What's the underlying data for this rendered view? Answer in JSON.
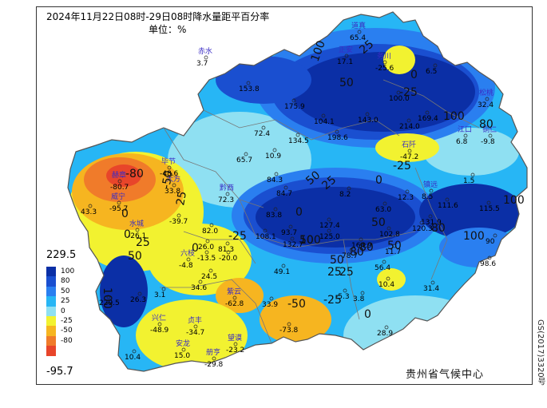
{
  "map": {
    "title": "2024年11月22日08时-29日08时降水量距平百分率",
    "unit": "单位：%",
    "agency": "贵州省气候中心",
    "approval_no": "GS(2017)3320号"
  },
  "legend": {
    "max_label": "229.5",
    "min_label": "-95.7",
    "entries": [
      {
        "label": "100",
        "color": "#0b2fa6"
      },
      {
        "label": "80",
        "color": "#1a4fd0"
      },
      {
        "label": "50",
        "color": "#2a7ff0"
      },
      {
        "label": "25",
        "color": "#27b6f5"
      },
      {
        "label": "0",
        "color": "#8fe0f2"
      },
      {
        "label": "-25",
        "color": "#f2f230"
      },
      {
        "label": "-50",
        "color": "#f6b520"
      },
      {
        "label": "-80",
        "color": "#f07b2a"
      },
      {
        "label": "",
        "color": "#e8452a"
      }
    ]
  },
  "stations": [
    {
      "name": "赤水",
      "value": "3.7"
    },
    {
      "name": "道真",
      "value": "65.4"
    },
    {
      "name": "务川",
      "value": "-25.6"
    },
    {
      "name": "正安",
      "value": "17.1"
    },
    {
      "name": "",
      "value": "6.5"
    },
    {
      "name": "",
      "value": "153.8"
    },
    {
      "name": "",
      "value": "175.9"
    },
    {
      "name": "",
      "value": "100.0"
    },
    {
      "name": "松桃",
      "value": "32.4"
    },
    {
      "name": "",
      "value": "104.1"
    },
    {
      "name": "",
      "value": "143.0"
    },
    {
      "name": "",
      "value": "214.0"
    },
    {
      "name": "",
      "value": "169.4"
    },
    {
      "name": "",
      "value": "72.4"
    },
    {
      "name": "",
      "value": "134.5"
    },
    {
      "name": "",
      "value": "198.6"
    },
    {
      "name": "江口",
      "value": "6.8"
    },
    {
      "name": "铜仁",
      "value": "-9.8"
    },
    {
      "name": "",
      "value": "65.7"
    },
    {
      "name": "",
      "value": "10.9"
    },
    {
      "name": "石阡",
      "value": "-47.2"
    },
    {
      "name": "毕节",
      "value": "-48.6"
    },
    {
      "name": "赫章",
      "value": "-80.7"
    },
    {
      "name": "大方",
      "value": "33.8"
    },
    {
      "name": "黔西",
      "value": "72.3"
    },
    {
      "name": "",
      "value": "84.7"
    },
    {
      "name": "",
      "value": "84.3"
    },
    {
      "name": "",
      "value": "8.2"
    },
    {
      "name": "",
      "value": "12.3"
    },
    {
      "name": "镇远",
      "value": "8.5"
    },
    {
      "name": "",
      "value": "1.5"
    },
    {
      "name": "威宁",
      "value": "-95.7"
    },
    {
      "name": "",
      "value": "43.3"
    },
    {
      "name": "",
      "value": "-39.7"
    },
    {
      "name": "",
      "value": "63.0"
    },
    {
      "name": "",
      "value": "111.6"
    },
    {
      "name": "",
      "value": "115.5"
    },
    {
      "name": "",
      "value": "83.8"
    },
    {
      "name": "",
      "value": "131.9"
    },
    {
      "name": "水城",
      "value": "-26.1"
    },
    {
      "name": "",
      "value": "82.0"
    },
    {
      "name": "",
      "value": "108.1"
    },
    {
      "name": "",
      "value": "127.4"
    },
    {
      "name": "",
      "value": "102.8"
    },
    {
      "name": "",
      "value": "120.3"
    },
    {
      "name": "",
      "value": "93.7"
    },
    {
      "name": "",
      "value": "125.0"
    },
    {
      "name": "",
      "value": "164.9"
    },
    {
      "name": "",
      "value": "90"
    },
    {
      "name": "",
      "value": "26.0"
    },
    {
      "name": "",
      "value": "81.3"
    },
    {
      "name": "",
      "value": "132.7"
    },
    {
      "name": "",
      "value": "11.7"
    },
    {
      "name": "六枝",
      "value": "-4.8"
    },
    {
      "name": "",
      "value": "-13.5"
    },
    {
      "name": "",
      "value": "-20.0"
    },
    {
      "name": "",
      "value": "78.7"
    },
    {
      "name": "",
      "value": "98.6"
    },
    {
      "name": "",
      "value": "49.1"
    },
    {
      "name": "",
      "value": "56.4"
    },
    {
      "name": "",
      "value": "24.5"
    },
    {
      "name": "",
      "value": "31.4"
    },
    {
      "name": "",
      "value": "34.6"
    },
    {
      "name": "",
      "value": "10.4"
    },
    {
      "name": "",
      "value": "3.1"
    },
    {
      "name": "",
      "value": "26.3"
    },
    {
      "name": "紫云",
      "value": "-62.8"
    },
    {
      "name": "",
      "value": "-5.3"
    },
    {
      "name": "",
      "value": "3.8"
    },
    {
      "name": "",
      "value": "229.5"
    },
    {
      "name": "",
      "value": "33.9"
    },
    {
      "name": "",
      "value": "-73.8"
    },
    {
      "name": "兴仁",
      "value": "-48.9"
    },
    {
      "name": "贞丰",
      "value": "-34.7"
    },
    {
      "name": "望谟",
      "value": "-23.2"
    },
    {
      "name": "",
      "value": "28.9"
    },
    {
      "name": "",
      "value": "10.4"
    },
    {
      "name": "安龙",
      "value": "15.0"
    },
    {
      "name": "册亨",
      "value": "-29.8"
    }
  ],
  "contour_labels": [
    "100",
    "25",
    "0",
    "-25",
    "50",
    "100",
    "80",
    "50",
    "25",
    "0",
    "-25",
    "50",
    "-80",
    "-50",
    "25",
    "0",
    "100",
    "80",
    "100",
    "80",
    "50",
    "25",
    "50",
    "80",
    "100",
    "50",
    "-25",
    "-50",
    "0",
    "25",
    "0",
    "100",
    "50",
    "25",
    "0",
    "0",
    "-25"
  ]
}
